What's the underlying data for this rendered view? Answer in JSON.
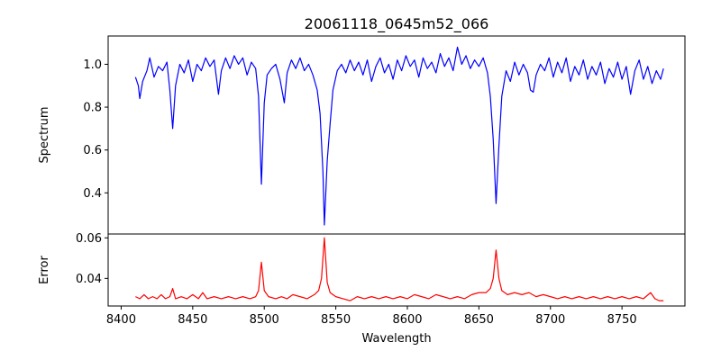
{
  "chart_data": [
    {
      "type": "line",
      "title": "20061118_0645m52_066",
      "xlabel": "",
      "ylabel": "Spectrum",
      "xlim": [
        8390.9,
        8794
      ],
      "ylim": [
        0.208,
        1.132
      ],
      "yticks": [
        0.4,
        0.6,
        0.8,
        1.0
      ],
      "ytick_labels": [
        "0.4",
        "0.6",
        "0.8",
        "1.0"
      ],
      "grid": false,
      "series": [
        {
          "name": "Spectrum",
          "color": "#0000ff",
          "points": [
            [
              8410,
              0.94
            ],
            [
              8412,
              0.9
            ],
            [
              8413,
              0.84
            ],
            [
              8415,
              0.92
            ],
            [
              8418,
              0.97
            ],
            [
              8420,
              1.03
            ],
            [
              8423,
              0.94
            ],
            [
              8426,
              0.99
            ],
            [
              8429,
              0.97
            ],
            [
              8432,
              1.01
            ],
            [
              8434,
              0.88
            ],
            [
              8436,
              0.7
            ],
            [
              8438,
              0.9
            ],
            [
              8441,
              1.0
            ],
            [
              8444,
              0.96
            ],
            [
              8447,
              1.02
            ],
            [
              8450,
              0.92
            ],
            [
              8453,
              1.0
            ],
            [
              8456,
              0.97
            ],
            [
              8459,
              1.03
            ],
            [
              8462,
              0.99
            ],
            [
              8465,
              1.02
            ],
            [
              8468,
              0.86
            ],
            [
              8470,
              0.97
            ],
            [
              8473,
              1.03
            ],
            [
              8476,
              0.98
            ],
            [
              8479,
              1.04
            ],
            [
              8482,
              1.0
            ],
            [
              8485,
              1.03
            ],
            [
              8488,
              0.95
            ],
            [
              8491,
              1.01
            ],
            [
              8494,
              0.98
            ],
            [
              8496,
              0.85
            ],
            [
              8498,
              0.44
            ],
            [
              8500,
              0.82
            ],
            [
              8502,
              0.95
            ],
            [
              8505,
              0.98
            ],
            [
              8508,
              1.0
            ],
            [
              8511,
              0.93
            ],
            [
              8514,
              0.82
            ],
            [
              8516,
              0.96
            ],
            [
              8519,
              1.02
            ],
            [
              8522,
              0.98
            ],
            [
              8525,
              1.03
            ],
            [
              8528,
              0.97
            ],
            [
              8531,
              1.0
            ],
            [
              8534,
              0.95
            ],
            [
              8537,
              0.88
            ],
            [
              8539,
              0.77
            ],
            [
              8541,
              0.5
            ],
            [
              8542,
              0.25
            ],
            [
              8544,
              0.55
            ],
            [
              8546,
              0.72
            ],
            [
              8548,
              0.88
            ],
            [
              8551,
              0.97
            ],
            [
              8554,
              1.0
            ],
            [
              8557,
              0.96
            ],
            [
              8560,
              1.02
            ],
            [
              8563,
              0.97
            ],
            [
              8566,
              1.01
            ],
            [
              8569,
              0.95
            ],
            [
              8572,
              1.02
            ],
            [
              8575,
              0.92
            ],
            [
              8578,
              0.99
            ],
            [
              8581,
              1.03
            ],
            [
              8584,
              0.96
            ],
            [
              8587,
              1.0
            ],
            [
              8590,
              0.93
            ],
            [
              8593,
              1.02
            ],
            [
              8596,
              0.97
            ],
            [
              8599,
              1.04
            ],
            [
              8602,
              0.99
            ],
            [
              8605,
              1.02
            ],
            [
              8608,
              0.94
            ],
            [
              8611,
              1.03
            ],
            [
              8614,
              0.98
            ],
            [
              8617,
              1.01
            ],
            [
              8620,
              0.96
            ],
            [
              8623,
              1.05
            ],
            [
              8626,
              0.99
            ],
            [
              8629,
              1.03
            ],
            [
              8632,
              0.97
            ],
            [
              8635,
              1.08
            ],
            [
              8638,
              1.0
            ],
            [
              8641,
              1.04
            ],
            [
              8644,
              0.98
            ],
            [
              8647,
              1.02
            ],
            [
              8650,
              0.99
            ],
            [
              8653,
              1.03
            ],
            [
              8656,
              0.96
            ],
            [
              8658,
              0.85
            ],
            [
              8660,
              0.65
            ],
            [
              8662,
              0.35
            ],
            [
              8664,
              0.62
            ],
            [
              8666,
              0.85
            ],
            [
              8669,
              0.97
            ],
            [
              8672,
              0.92
            ],
            [
              8675,
              1.01
            ],
            [
              8678,
              0.95
            ],
            [
              8681,
              1.0
            ],
            [
              8684,
              0.96
            ],
            [
              8686,
              0.88
            ],
            [
              8688,
              0.87
            ],
            [
              8690,
              0.95
            ],
            [
              8693,
              1.0
            ],
            [
              8696,
              0.97
            ],
            [
              8699,
              1.03
            ],
            [
              8702,
              0.94
            ],
            [
              8705,
              1.01
            ],
            [
              8708,
              0.96
            ],
            [
              8711,
              1.03
            ],
            [
              8714,
              0.92
            ],
            [
              8717,
              0.99
            ],
            [
              8720,
              0.95
            ],
            [
              8723,
              1.02
            ],
            [
              8726,
              0.93
            ],
            [
              8729,
              0.99
            ],
            [
              8732,
              0.95
            ],
            [
              8735,
              1.01
            ],
            [
              8738,
              0.91
            ],
            [
              8741,
              0.98
            ],
            [
              8744,
              0.94
            ],
            [
              8747,
              1.01
            ],
            [
              8750,
              0.93
            ],
            [
              8753,
              0.99
            ],
            [
              8756,
              0.86
            ],
            [
              8759,
              0.97
            ],
            [
              8762,
              1.02
            ],
            [
              8765,
              0.93
            ],
            [
              8768,
              0.99
            ],
            [
              8771,
              0.91
            ],
            [
              8774,
              0.97
            ],
            [
              8777,
              0.93
            ],
            [
              8779,
              0.98
            ]
          ]
        }
      ]
    },
    {
      "type": "line",
      "title": "",
      "xlabel": "Wavelength",
      "ylabel": "Error",
      "xlim": [
        8390.9,
        8794
      ],
      "ylim": [
        0.0264,
        0.0619
      ],
      "xticks": [
        8400,
        8450,
        8500,
        8550,
        8600,
        8650,
        8700,
        8750
      ],
      "xtick_labels": [
        "8400",
        "8450",
        "8500",
        "8550",
        "8600",
        "8650",
        "8700",
        "8750"
      ],
      "yticks": [
        0.04,
        0.06
      ],
      "ytick_labels": [
        "0.04",
        "0.06"
      ],
      "grid": false,
      "series": [
        {
          "name": "Error",
          "color": "#ff0000",
          "points": [
            [
              8410,
              0.031
            ],
            [
              8413,
              0.03
            ],
            [
              8416,
              0.032
            ],
            [
              8419,
              0.03
            ],
            [
              8422,
              0.031
            ],
            [
              8425,
              0.03
            ],
            [
              8428,
              0.032
            ],
            [
              8431,
              0.03
            ],
            [
              8434,
              0.031
            ],
            [
              8436,
              0.035
            ],
            [
              8438,
              0.03
            ],
            [
              8442,
              0.031
            ],
            [
              8446,
              0.03
            ],
            [
              8450,
              0.032
            ],
            [
              8454,
              0.03
            ],
            [
              8457,
              0.033
            ],
            [
              8460,
              0.03
            ],
            [
              8465,
              0.031
            ],
            [
              8470,
              0.03
            ],
            [
              8475,
              0.031
            ],
            [
              8480,
              0.03
            ],
            [
              8485,
              0.031
            ],
            [
              8490,
              0.03
            ],
            [
              8494,
              0.031
            ],
            [
              8496,
              0.034
            ],
            [
              8498,
              0.048
            ],
            [
              8500,
              0.034
            ],
            [
              8503,
              0.031
            ],
            [
              8508,
              0.03
            ],
            [
              8512,
              0.031
            ],
            [
              8516,
              0.03
            ],
            [
              8520,
              0.032
            ],
            [
              8525,
              0.031
            ],
            [
              8530,
              0.03
            ],
            [
              8535,
              0.032
            ],
            [
              8538,
              0.034
            ],
            [
              8540,
              0.04
            ],
            [
              8542,
              0.06
            ],
            [
              8544,
              0.038
            ],
            [
              8546,
              0.033
            ],
            [
              8550,
              0.031
            ],
            [
              8555,
              0.03
            ],
            [
              8560,
              0.029
            ],
            [
              8565,
              0.031
            ],
            [
              8570,
              0.03
            ],
            [
              8575,
              0.031
            ],
            [
              8580,
              0.03
            ],
            [
              8585,
              0.031
            ],
            [
              8590,
              0.03
            ],
            [
              8595,
              0.031
            ],
            [
              8600,
              0.03
            ],
            [
              8605,
              0.032
            ],
            [
              8610,
              0.031
            ],
            [
              8615,
              0.03
            ],
            [
              8620,
              0.032
            ],
            [
              8625,
              0.031
            ],
            [
              8630,
              0.03
            ],
            [
              8635,
              0.031
            ],
            [
              8640,
              0.03
            ],
            [
              8645,
              0.032
            ],
            [
              8650,
              0.033
            ],
            [
              8655,
              0.033
            ],
            [
              8658,
              0.035
            ],
            [
              8660,
              0.04
            ],
            [
              8662,
              0.054
            ],
            [
              8664,
              0.04
            ],
            [
              8666,
              0.034
            ],
            [
              8670,
              0.032
            ],
            [
              8675,
              0.033
            ],
            [
              8680,
              0.032
            ],
            [
              8685,
              0.033
            ],
            [
              8690,
              0.031
            ],
            [
              8695,
              0.032
            ],
            [
              8700,
              0.031
            ],
            [
              8705,
              0.03
            ],
            [
              8710,
              0.031
            ],
            [
              8715,
              0.03
            ],
            [
              8720,
              0.031
            ],
            [
              8725,
              0.03
            ],
            [
              8730,
              0.031
            ],
            [
              8735,
              0.03
            ],
            [
              8740,
              0.031
            ],
            [
              8745,
              0.03
            ],
            [
              8750,
              0.031
            ],
            [
              8755,
              0.03
            ],
            [
              8760,
              0.031
            ],
            [
              8765,
              0.03
            ],
            [
              8770,
              0.033
            ],
            [
              8773,
              0.03
            ],
            [
              8776,
              0.029
            ],
            [
              8779,
              0.029
            ]
          ]
        }
      ]
    }
  ]
}
